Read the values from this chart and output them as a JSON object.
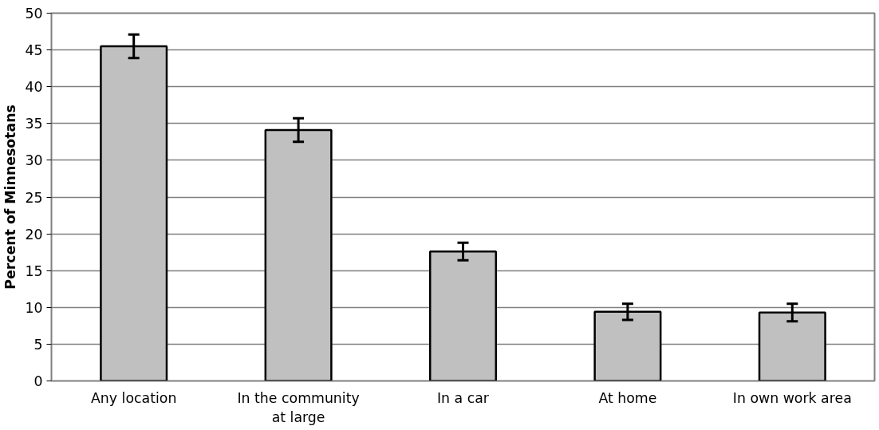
{
  "chart_data": {
    "type": "bar",
    "ylabel": "Percent of Minnesotans",
    "categories": [
      "Any location",
      "In the community at large",
      "In a car",
      "At home",
      "In own work area"
    ],
    "values": [
      45.5,
      34.1,
      17.6,
      9.4,
      9.3
    ],
    "errors": [
      1.6,
      1.6,
      1.2,
      1.1,
      1.2
    ],
    "color": "#c0c0c0",
    "ylim": [
      0,
      50
    ],
    "yticks": [
      0,
      5,
      10,
      15,
      20,
      25,
      30,
      35,
      40,
      45,
      50
    ],
    "grid": "y"
  }
}
